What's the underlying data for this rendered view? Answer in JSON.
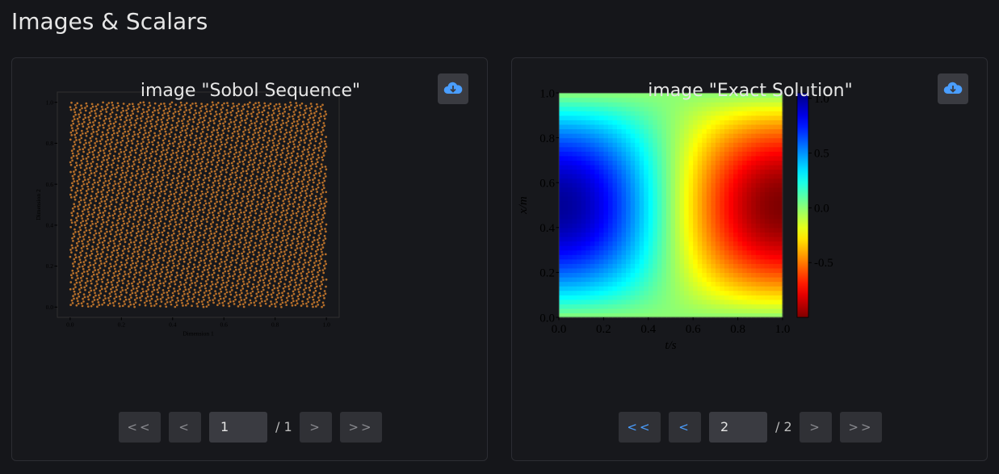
{
  "header": {
    "title": "Images & Scalars"
  },
  "cards": [
    {
      "title": "image \"Sobol Sequence\"",
      "plot": {
        "type": "scatter",
        "color": "#b8702a",
        "xlabel": "Dimension 1",
        "ylabel": "Dimension 2",
        "xlim": [
          -0.05,
          1.05
        ],
        "ylim": [
          -0.05,
          1.05
        ],
        "xticks": [
          {
            "value": 0,
            "label": "0.0"
          },
          {
            "value": 0.2,
            "label": "0.2"
          },
          {
            "value": 0.4,
            "label": "0.4"
          },
          {
            "value": 0.6,
            "label": "0.6"
          },
          {
            "value": 0.8,
            "label": "0.8"
          },
          {
            "value": 1,
            "label": "1.0"
          }
        ],
        "yticks": [
          {
            "value": 0,
            "label": "0.0"
          },
          {
            "value": 0.2,
            "label": "0.2"
          },
          {
            "value": 0.4,
            "label": "0.4"
          },
          {
            "value": 0.6,
            "label": "0.6"
          },
          {
            "value": 0.8,
            "label": "0.8"
          },
          {
            "value": 1,
            "label": "1.0"
          }
        ]
      },
      "pager": {
        "first": "<<",
        "prev": "<",
        "page": "1",
        "total": "/ 1",
        "next": ">",
        "last": ">>",
        "enabled": [
          false,
          false,
          false,
          false
        ]
      }
    },
    {
      "title": "image \"Exact Solution\"",
      "plot": {
        "type": "heatmap",
        "xlabel": "t/s",
        "ylabel": "x/m",
        "xlim": [
          0,
          1
        ],
        "ylim": [
          0,
          1
        ],
        "xticks": [
          {
            "value": 0,
            "label": "0.0"
          },
          {
            "value": 0.2,
            "label": "0.2"
          },
          {
            "value": 0.4,
            "label": "0.4"
          },
          {
            "value": 0.6,
            "label": "0.6"
          },
          {
            "value": 0.8,
            "label": "0.8"
          },
          {
            "value": 1,
            "label": "1.0"
          }
        ],
        "yticks": [
          {
            "value": 0,
            "label": "0.0"
          },
          {
            "value": 0.2,
            "label": "0.2"
          },
          {
            "value": 0.4,
            "label": "0.4"
          },
          {
            "value": 0.6,
            "label": "0.6"
          },
          {
            "value": 0.8,
            "label": "0.8"
          },
          {
            "value": 1,
            "label": "1.0"
          }
        ],
        "clim": [
          -1,
          1.05
        ],
        "cticks": [
          {
            "value": 1,
            "label": "1.0"
          },
          {
            "value": 0.5,
            "label": "0.5"
          },
          {
            "value": 0,
            "label": "0.0"
          },
          {
            "value": -0.5,
            "label": "-0.5"
          }
        ]
      },
      "pager": {
        "first": "<<",
        "prev": "<",
        "page": "2",
        "total": "/ 2",
        "next": ">",
        "last": ">>",
        "enabled": [
          true,
          true,
          false,
          false
        ]
      }
    }
  ]
}
